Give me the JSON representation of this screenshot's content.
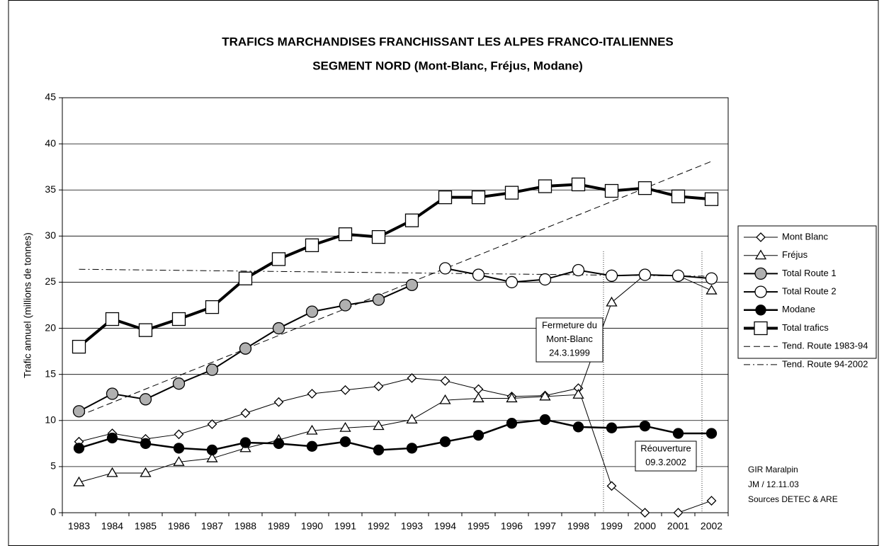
{
  "chart_data": {
    "type": "line",
    "title": "TRAFICS MARCHANDISES FRANCHISSANT LES ALPES FRANCO-ITALIENNES",
    "subtitle": "SEGMENT NORD (Mont-Blanc, Fréjus, Modane)",
    "y_label": "Trafic annuel (millions de tonnes)",
    "categories": [
      "1983",
      "1984",
      "1985",
      "1986",
      "1987",
      "1988",
      "1989",
      "1990",
      "1991",
      "1992",
      "1993",
      "1994",
      "1995",
      "1996",
      "1997",
      "1998",
      "1999",
      "2000",
      "2001",
      "2002"
    ],
    "ylim": [
      0,
      45
    ],
    "yticks": [
      0,
      5,
      10,
      15,
      20,
      25,
      30,
      35,
      40,
      45
    ],
    "grid": true,
    "series": [
      {
        "name": "Mont Blanc",
        "color": "#000000",
        "values": [
          7.7,
          8.6,
          8.0,
          8.5,
          9.6,
          10.8,
          12.0,
          12.9,
          13.3,
          13.7,
          14.6,
          14.3,
          13.4,
          12.6,
          12.7,
          13.5,
          2.9,
          0,
          0,
          1.3
        ]
      },
      {
        "name": "Fréjus",
        "color": "#000000",
        "values": [
          3.3,
          4.3,
          4.3,
          5.5,
          5.9,
          7.0,
          7.9,
          8.9,
          9.2,
          9.4,
          10.1,
          12.2,
          12.4,
          12.4,
          12.6,
          12.8,
          22.8,
          25.8,
          25.7,
          24.1
        ]
      },
      {
        "name": "Total Route 1",
        "color": "#000000",
        "values": [
          11.0,
          12.9,
          12.3,
          14.0,
          15.5,
          17.8,
          20.0,
          21.8,
          22.5,
          23.1,
          24.7,
          null,
          null,
          null,
          null,
          null,
          null,
          null,
          null,
          null
        ]
      },
      {
        "name": "Total Route 2",
        "color": "#000000",
        "values": [
          null,
          null,
          null,
          null,
          null,
          null,
          null,
          null,
          null,
          null,
          null,
          26.5,
          25.8,
          25.0,
          25.3,
          26.3,
          25.7,
          25.8,
          25.7,
          25.4
        ]
      },
      {
        "name": "Modane",
        "color": "#000000",
        "values": [
          7.0,
          8.1,
          7.5,
          7.0,
          6.8,
          7.6,
          7.5,
          7.2,
          7.7,
          6.8,
          7.0,
          7.7,
          8.4,
          9.7,
          10.1,
          9.3,
          9.2,
          9.4,
          8.6,
          8.6
        ]
      },
      {
        "name": "Total trafics",
        "color": "#000000",
        "values": [
          18.0,
          21.0,
          19.8,
          21.0,
          22.3,
          25.4,
          27.5,
          29.0,
          30.2,
          29.9,
          31.7,
          34.2,
          34.2,
          34.7,
          35.4,
          35.6,
          34.9,
          35.2,
          34.3,
          34.0
        ]
      },
      {
        "name": "Tend. Route 1983-94",
        "color": "#000000",
        "values": [
          10.5,
          11.95,
          13.41,
          14.86,
          16.31,
          17.76,
          19.22,
          20.67,
          22.12,
          23.57,
          25.03,
          26.48,
          27.93,
          29.38,
          30.84,
          32.29,
          33.74,
          35.19,
          36.65,
          38.1
        ]
      },
      {
        "name": "Tend. Route 94-2002",
        "color": "#000000",
        "values": [
          26.4,
          26.36,
          26.32,
          26.28,
          26.24,
          26.2,
          26.16,
          26.12,
          26.08,
          26.04,
          26.0,
          25.96,
          25.92,
          25.88,
          25.84,
          25.8,
          25.76,
          25.72,
          25.68,
          25.64
        ]
      }
    ],
    "annotations": [
      {
        "lines": [
          "Fermeture du",
          "Mont-Blanc",
          "24.3.1999"
        ]
      },
      {
        "lines": [
          "Réouverture",
          "09.3.2002"
        ]
      }
    ],
    "note": [
      "GIR Maralpin",
      "JM / 12.11.03",
      "Sources DETEC & ARE"
    ]
  }
}
